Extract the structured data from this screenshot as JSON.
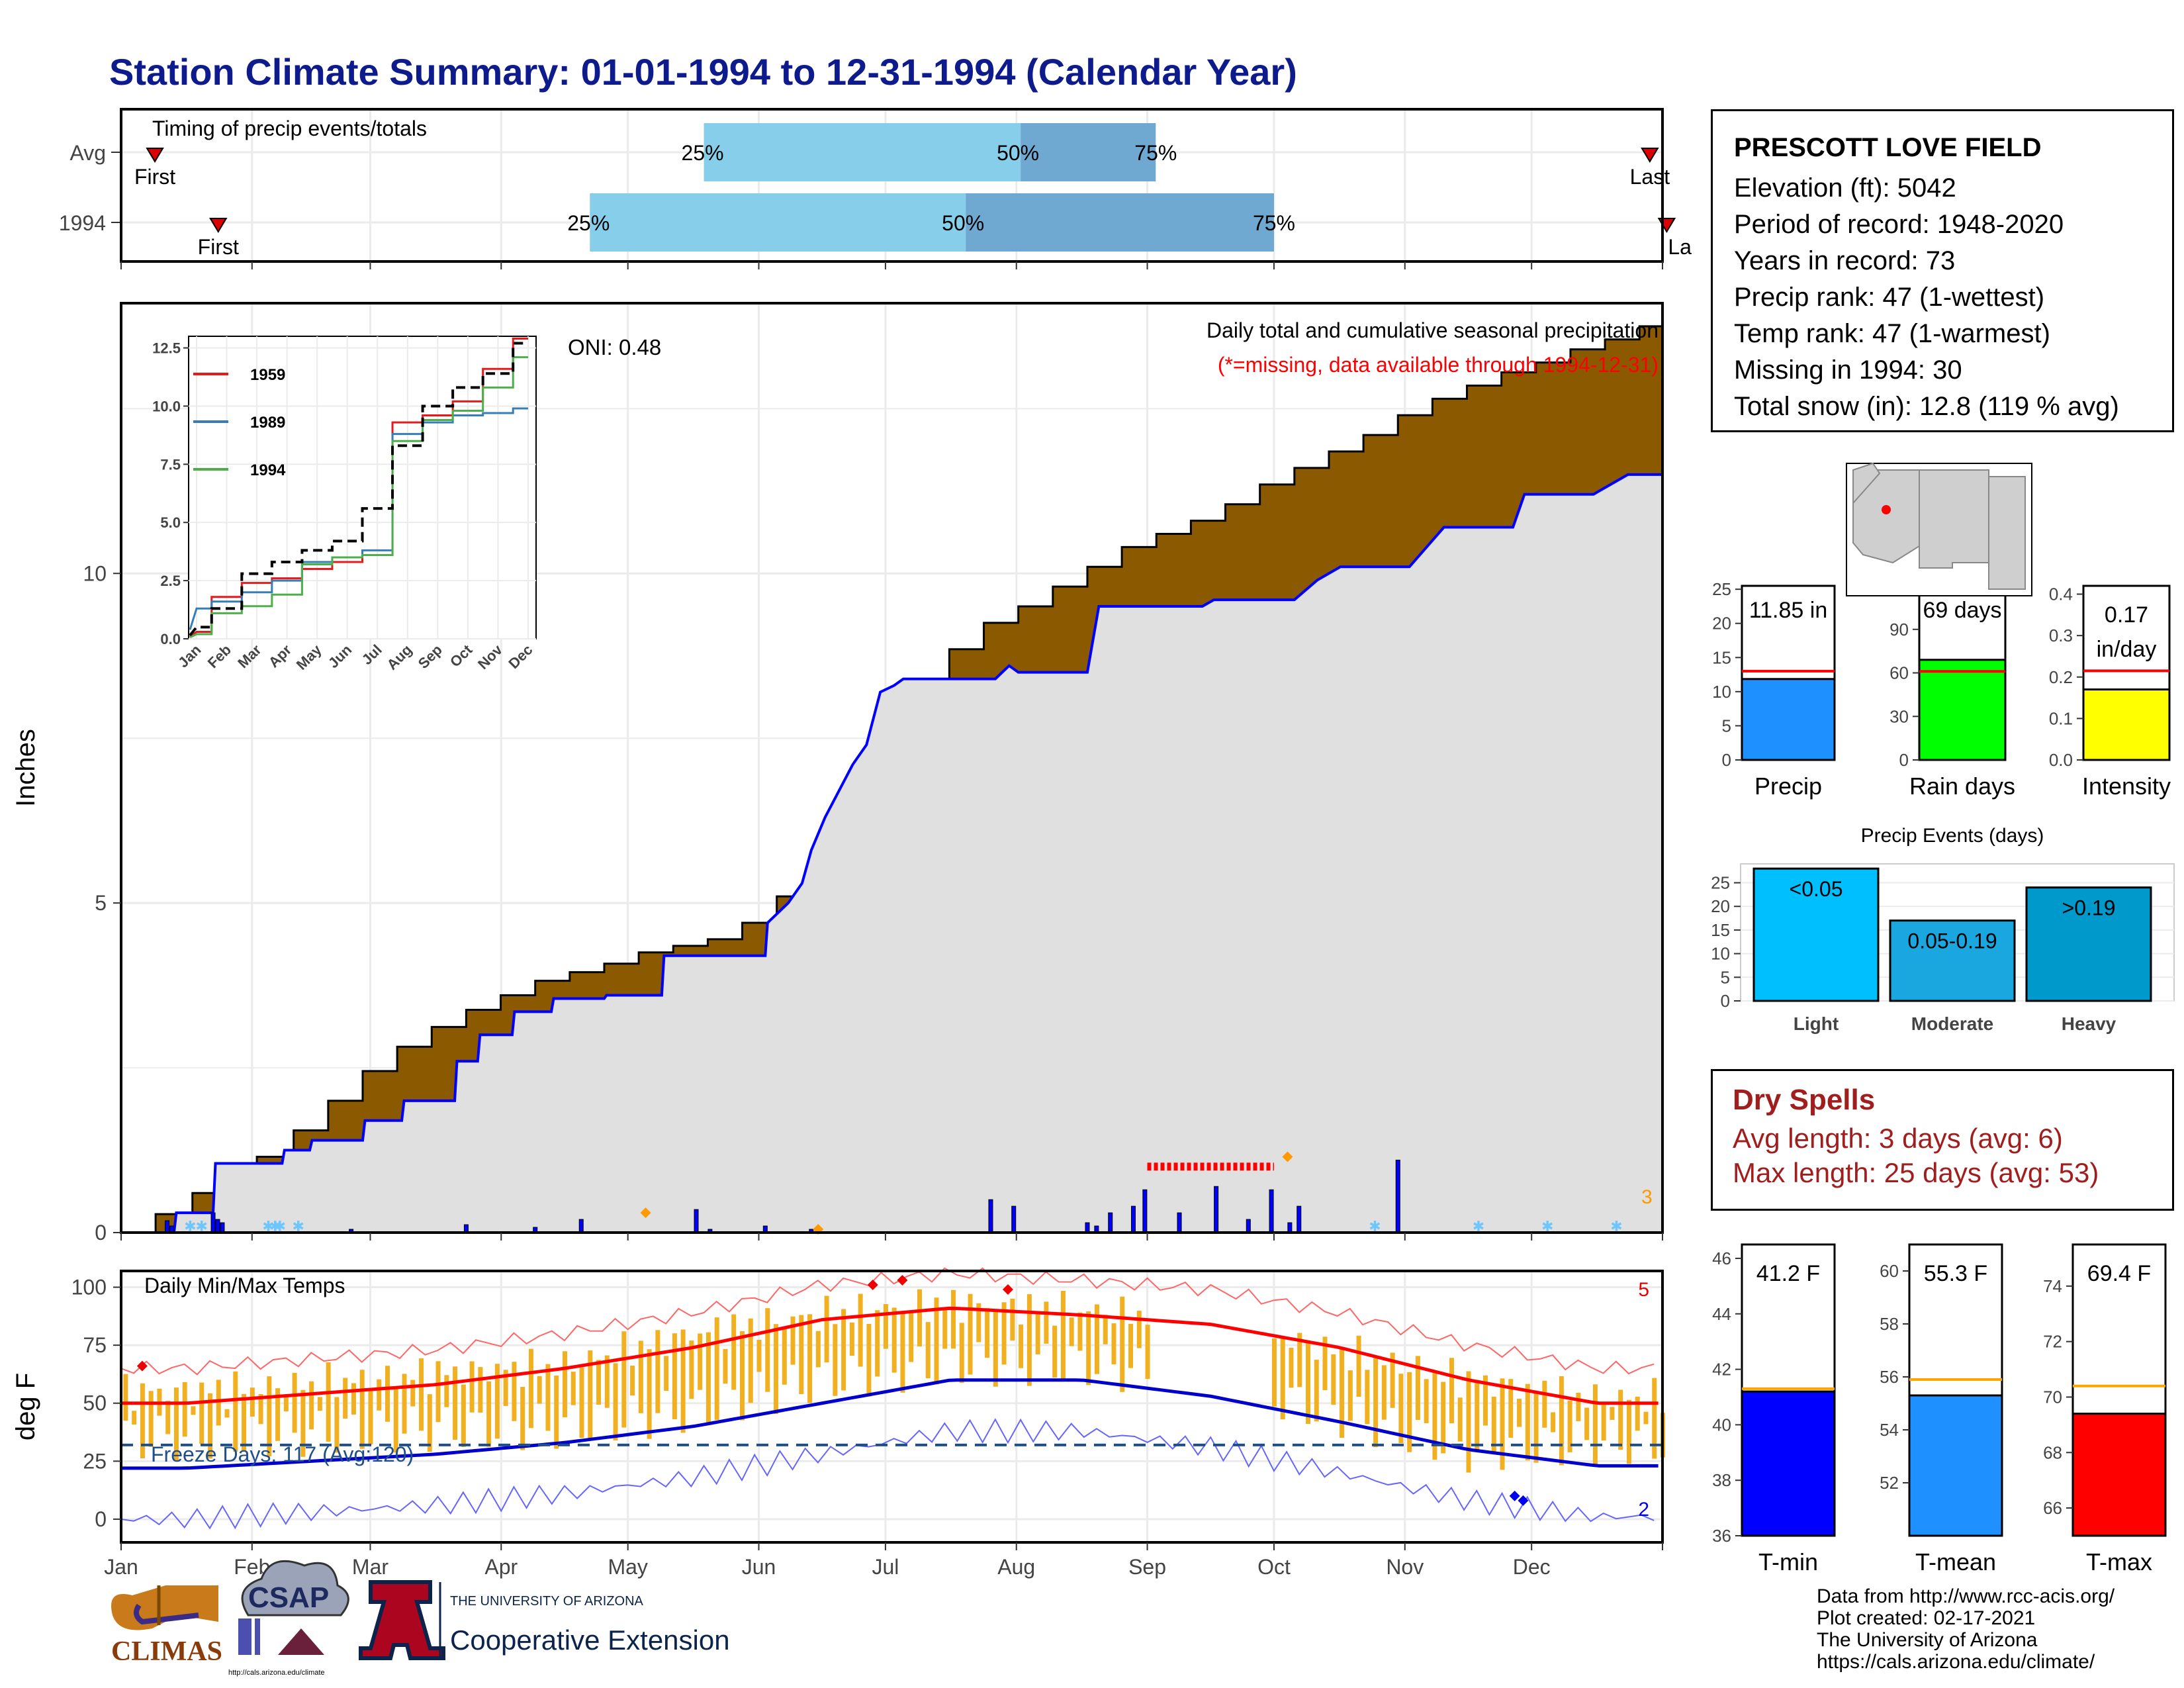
{
  "title": "Station Climate Summary: 01-01-1994 to 12-31-1994 (Calendar Year)",
  "station": {
    "name": "PRESCOTT LOVE FIELD",
    "lines": [
      "Elevation (ft): 5042",
      "Period of record: 1948-2020",
      "Years in record: 73",
      "Precip rank: 47 (1-wettest)",
      "Temp rank: 47 (1-warmest)",
      "Missing in 1994: 30",
      "Total snow (in): 12.8 (119 % avg)"
    ]
  },
  "dry_spells": {
    "title": "Dry Spells",
    "avg_length": "Avg length: 3 days (avg: 6)",
    "max_length": "Max length: 25 days (avg: 53)"
  },
  "credits": [
    "Data from http://www.rcc-acis.org/",
    "Plot created: 02-17-2021",
    "The University of Arizona",
    "https://cals.arizona.edu/climate/"
  ],
  "logos": {
    "climas": "CLIMAS",
    "csap": "CSAP",
    "csap_url": "http://cals.arizona.edu/climate",
    "ua_line1": "THE UNIVERSITY OF ARIZONA",
    "ua_line2": "Cooperative Extension"
  },
  "colors": {
    "title": "#0d1b8c",
    "cum_avg_fill": "#8b5a00",
    "cum_obs_fill": "#e0e0e0",
    "obs_line": "#0000ff",
    "temp_range": "#f0b020",
    "tmax_avg": "#ff0000",
    "tmin_avg": "#0000cc",
    "dry_text": "#a01e1e"
  },
  "chart_data": [
    {
      "id": "timing",
      "type": "bar",
      "title": "Timing of precip events/totals",
      "categories": [
        "Avg",
        "1994"
      ],
      "series": [
        {
          "name": "Avg",
          "q25_day": 138,
          "q50_day": 213,
          "q75_day": 245,
          "first_day": 8,
          "last_day": 362
        },
        {
          "name": "1994",
          "q25_day": 111,
          "q50_day": 200,
          "q75_day": 273,
          "first_day": 23,
          "last_day": 366
        }
      ],
      "labels": {
        "q25": "25%",
        "q50": "50%",
        "q75": "75%",
        "first": "First",
        "last": "Last",
        "last_clipped": "La"
      }
    },
    {
      "id": "precip",
      "type": "area",
      "title": "Daily total and cumulative seasonal precipitation",
      "subtitle": "(*=missing, data available through 1994-12-31)",
      "ylabel": "Inches",
      "ylim": [
        0,
        14.1
      ],
      "yticks": [
        0,
        5,
        10
      ],
      "oni": "ONI: 0.48",
      "snow_count": "3",
      "avg_cum": [
        [
          1,
          0
        ],
        [
          15,
          0.28
        ],
        [
          31,
          0.6
        ],
        [
          45,
          0.88
        ],
        [
          59,
          1.15
        ],
        [
          75,
          1.55
        ],
        [
          90,
          2.0
        ],
        [
          105,
          2.45
        ],
        [
          120,
          2.82
        ],
        [
          135,
          3.12
        ],
        [
          150,
          3.38
        ],
        [
          165,
          3.6
        ],
        [
          180,
          3.82
        ],
        [
          195,
          3.95
        ],
        [
          210,
          4.08
        ],
        [
          225,
          4.25
        ],
        [
          240,
          4.35
        ],
        [
          255,
          4.45
        ],
        [
          270,
          4.7
        ],
        [
          285,
          5.1
        ],
        [
          300,
          5.8
        ],
        [
          315,
          6.6
        ],
        [
          330,
          7.5
        ],
        [
          345,
          8.3
        ],
        [
          360,
          8.85
        ],
        [
          375,
          9.25
        ],
        [
          390,
          9.5
        ],
        [
          405,
          9.8
        ],
        [
          420,
          10.1
        ],
        [
          435,
          10.4
        ],
        [
          450,
          10.6
        ],
        [
          465,
          10.8
        ],
        [
          480,
          11.05
        ],
        [
          495,
          11.35
        ],
        [
          510,
          11.6
        ],
        [
          525,
          11.85
        ],
        [
          540,
          12.1
        ],
        [
          555,
          12.4
        ],
        [
          570,
          12.65
        ],
        [
          585,
          12.85
        ],
        [
          600,
          13.05
        ],
        [
          615,
          13.2
        ],
        [
          630,
          13.4
        ],
        [
          645,
          13.55
        ],
        [
          660,
          13.75
        ],
        [
          670,
          13.9
        ]
      ],
      "obs_cum": [
        [
          1,
          0
        ],
        [
          23,
          0
        ],
        [
          24,
          0.3
        ],
        [
          40,
          0.3
        ],
        [
          41,
          1.05
        ],
        [
          70,
          1.05
        ],
        [
          71,
          1.25
        ],
        [
          82,
          1.25
        ],
        [
          83,
          1.4
        ],
        [
          105,
          1.4
        ],
        [
          106,
          1.7
        ],
        [
          122,
          1.7
        ],
        [
          123,
          2.0
        ],
        [
          145,
          2.0
        ],
        [
          146,
          2.6
        ],
        [
          155,
          2.6
        ],
        [
          156,
          3.0
        ],
        [
          170,
          3.0
        ],
        [
          171,
          3.35
        ],
        [
          187,
          3.35
        ],
        [
          188,
          3.55
        ],
        [
          210,
          3.55
        ],
        [
          211,
          3.6
        ],
        [
          235,
          3.6
        ],
        [
          236,
          4.2
        ],
        [
          280,
          4.2
        ],
        [
          281,
          4.7
        ],
        [
          290,
          5.0
        ],
        [
          296,
          5.3
        ],
        [
          300,
          5.8
        ],
        [
          306,
          6.3
        ],
        [
          318,
          7.1
        ],
        [
          324,
          7.4
        ],
        [
          330,
          8.2
        ],
        [
          336,
          8.3
        ],
        [
          340,
          8.4
        ],
        [
          380,
          8.4
        ],
        [
          386,
          8.6
        ],
        [
          390,
          8.5
        ],
        [
          420,
          8.5
        ],
        [
          425,
          9.5
        ],
        [
          470,
          9.5
        ],
        [
          475,
          9.6
        ],
        [
          510,
          9.6
        ],
        [
          520,
          9.9
        ],
        [
          530,
          10.1
        ],
        [
          560,
          10.1
        ],
        [
          575,
          10.7
        ],
        [
          605,
          10.7
        ],
        [
          610,
          11.2
        ],
        [
          640,
          11.2
        ],
        [
          655,
          11.5
        ],
        [
          670,
          11.5
        ]
      ],
      "note": "x values are day index scaled to plot width (0-670 ≈ Jan 1 - Dec 31)",
      "dry_spell_marker": {
        "start_month": "Sep",
        "end_month": "Oct",
        "value": 1.0
      }
    },
    {
      "id": "inset",
      "type": "line",
      "xlabel": "",
      "ylabel": "",
      "ylim": [
        0,
        13
      ],
      "yticks": [
        "0.0",
        "2.5",
        "5.0",
        "7.5",
        "10.0",
        "12.5"
      ],
      "categories": [
        "Jan",
        "Feb",
        "Mar",
        "Apr",
        "May",
        "Jun",
        "Jul",
        "Aug",
        "Sep",
        "Oct",
        "Nov",
        "Dec"
      ],
      "series": [
        {
          "name": "1959",
          "color": "#e41a1c",
          "values": [
            0.3,
            1.8,
            2.4,
            2.6,
            3.0,
            3.3,
            3.6,
            9.3,
            9.6,
            10.2,
            11.6,
            12.9
          ]
        },
        {
          "name": "1989",
          "color": "#377eb8",
          "values": [
            1.3,
            1.6,
            2.0,
            2.5,
            3.3,
            3.5,
            3.8,
            8.8,
            9.3,
            9.6,
            9.7,
            9.9
          ]
        },
        {
          "name": "1994",
          "color": "#4daf4a",
          "values": [
            0.2,
            1.1,
            1.4,
            1.9,
            3.2,
            3.5,
            3.6,
            8.5,
            9.4,
            9.8,
            10.8,
            12.1
          ]
        },
        {
          "name": "avg",
          "color": "#000000",
          "values": [
            0.5,
            1.3,
            2.8,
            3.3,
            3.8,
            4.2,
            5.6,
            8.3,
            10.0,
            10.8,
            11.4,
            12.7
          ]
        }
      ]
    },
    {
      "id": "temps",
      "type": "line",
      "title": "Daily Min/Max Temps",
      "ylabel": "deg F",
      "ylim": [
        -10,
        107
      ],
      "yticks": [
        0,
        25,
        50,
        75,
        100
      ],
      "freeze_label": "Freeze Days: 117 (Avg:120)",
      "freeze_line": 32,
      "record_high_count": "5",
      "record_low_count": "2",
      "categories": [
        "Jan",
        "Feb",
        "Mar",
        "Apr",
        "May",
        "Jun",
        "Jul",
        "Aug",
        "Sep",
        "Oct",
        "Nov",
        "Dec"
      ],
      "avg_tmax_monthly": [
        50,
        54,
        58,
        65,
        74,
        86,
        91,
        88,
        84,
        74,
        60,
        50
      ],
      "avg_tmin_monthly": [
        22,
        25,
        28,
        33,
        40,
        50,
        60,
        60,
        53,
        42,
        30,
        23
      ],
      "obs_tmax_monthly": [
        55,
        58,
        63,
        66,
        80,
        88,
        93,
        90,
        86,
        72,
        60,
        52
      ],
      "obs_tmin_monthly": [
        30,
        32,
        34,
        35,
        42,
        55,
        62,
        62,
        55,
        40,
        25,
        28
      ]
    },
    {
      "id": "precip_stats",
      "type": "bar",
      "series": [
        {
          "name": "Precip",
          "label": "11.85 in",
          "value": 11.85,
          "avg": 13.0,
          "ymax": 25.5,
          "yticks": [
            0,
            5,
            10,
            15,
            20,
            25
          ],
          "color": "#1e90ff"
        },
        {
          "name": "Rain days",
          "label": "69 days",
          "value": 69,
          "avg": 61,
          "ymax": 120,
          "yticks": [
            0,
            30,
            60,
            90,
            120
          ],
          "color": "#00ff00"
        },
        {
          "name": "Intensity",
          "label_line1": "0.17",
          "label_line2": "in/day",
          "value": 0.17,
          "avg": 0.215,
          "ymax": 0.42,
          "yticks": [
            "0.0",
            "0.1",
            "0.2",
            "0.3",
            "0.4"
          ],
          "color": "#ffff00"
        }
      ]
    },
    {
      "id": "precip_events",
      "type": "bar",
      "title": "Precip Events (days)",
      "categories": [
        "Light",
        "Moderate",
        "Heavy"
      ],
      "values": [
        28,
        17,
        24
      ],
      "bar_labels": [
        "<0.05",
        "0.05-0.19",
        ">0.19"
      ],
      "colors": [
        "#00bfff",
        "#1aa7e0",
        "#0099cc"
      ],
      "ylim": [
        0,
        29
      ],
      "yticks": [
        0,
        5,
        10,
        15,
        20,
        25
      ]
    },
    {
      "id": "temp_stats",
      "type": "bar",
      "series": [
        {
          "name": "T-min",
          "label": "41.2 F",
          "value": 41.2,
          "avg": 41.3,
          "ylim": [
            36,
            46.5
          ],
          "yticks": [
            36,
            38,
            40,
            42,
            44,
            46
          ],
          "color": "#0000ff"
        },
        {
          "name": "T-mean",
          "label": "55.3 F",
          "value": 55.3,
          "avg": 55.9,
          "ylim": [
            50,
            61
          ],
          "yticks": [
            52,
            54,
            56,
            58,
            60
          ],
          "color": "#1e90ff"
        },
        {
          "name": "T-max",
          "label": "69.4 F",
          "value": 69.4,
          "avg": 70.4,
          "ylim": [
            65,
            75.5
          ],
          "yticks": [
            66,
            68,
            70,
            72,
            74
          ],
          "color": "#ff0000"
        }
      ]
    }
  ]
}
